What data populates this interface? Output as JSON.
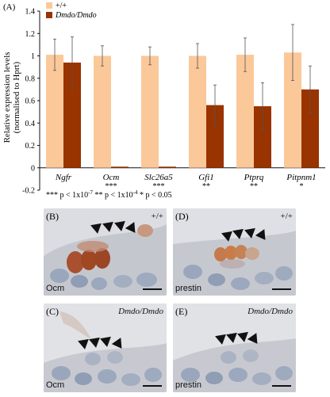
{
  "chart_data": {
    "type": "bar",
    "panel_label": "(A)",
    "ylabel": "Relative expression levels",
    "ylabel2": "(normalised to Hprt)",
    "ylim": [
      -0.2,
      1.4
    ],
    "yticks": [
      -0.2,
      0,
      0.2,
      0.4,
      0.6,
      0.8,
      1,
      1.2,
      1.4
    ],
    "ytick_labels": [
      "-0.2",
      "0",
      "0.2",
      "0.4",
      "0.6",
      "0.8",
      "1",
      "1.2",
      "1.4"
    ],
    "categories": [
      "Ngfr",
      "Ocm",
      "Slc26a5",
      "Gfi1",
      "Ptprq",
      "Pitpnm1"
    ],
    "significance": [
      "",
      "***",
      "***",
      "**",
      "**",
      "*"
    ],
    "series": [
      {
        "name": "+/+",
        "color": "#fbc89a",
        "values": [
          1.01,
          1.0,
          1.0,
          1.0,
          1.01,
          1.03
        ],
        "errors": [
          0.14,
          0.09,
          0.08,
          0.11,
          0.15,
          0.25
        ]
      },
      {
        "name": "Dmdo/Dmdo",
        "color": "#993300",
        "values": [
          0.94,
          0.01,
          0.01,
          0.56,
          0.55,
          0.7
        ],
        "errors": [
          0.23,
          0.0,
          0.0,
          0.18,
          0.21,
          0.21
        ]
      }
    ],
    "legend_location": "top-left",
    "footnote": "*** p < 1x10",
    "footnote_exp": "-7",
    "footnote2": "** p < 1x10",
    "footnote2_exp": "-4",
    "footnote3": "* p < 0.05"
  },
  "micrographs": {
    "b": {
      "label": "(B)",
      "genotype": "+/+",
      "stain": "Ocm"
    },
    "c": {
      "label": "(C)",
      "genotype": "Dmdo/Dmdo",
      "stain": "Ocm"
    },
    "d": {
      "label": "(D)",
      "genotype": "+/+",
      "stain": "prestin"
    },
    "e": {
      "label": "(E)",
      "genotype": "Dmdo/Dmdo",
      "stain": "prestin"
    }
  }
}
